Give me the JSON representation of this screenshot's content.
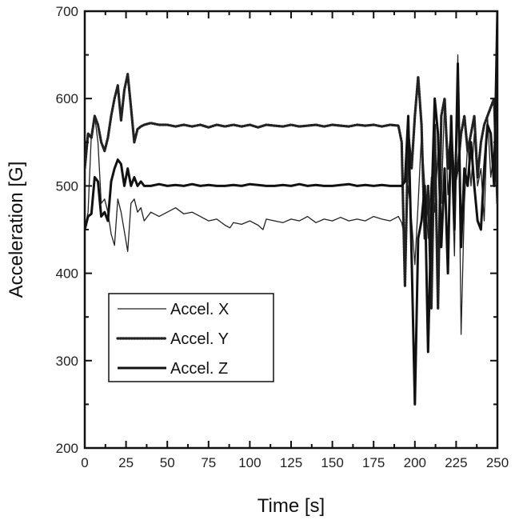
{
  "chart_data": {
    "type": "line",
    "title": "",
    "xlabel": "Time [s]",
    "ylabel": "Acceleration [G]",
    "xlim": [
      0,
      250
    ],
    "ylim": [
      200,
      700
    ],
    "xticks": [
      0,
      25,
      50,
      75,
      100,
      125,
      150,
      175,
      200,
      225,
      250
    ],
    "yticks": [
      200,
      300,
      400,
      500,
      600,
      700
    ],
    "xtick_labels": [
      "0",
      "25",
      "50",
      "75",
      "100",
      "125",
      "150",
      "175",
      "200",
      "225",
      "250"
    ],
    "ytick_labels": [
      "200",
      "300",
      "400",
      "500",
      "600",
      "700"
    ],
    "grid": false,
    "legend_position": "bottom-left",
    "series": [
      {
        "name": "Accel. X",
        "style": "thin-solid",
        "color": "#222222",
        "x": [
          0,
          2,
          4,
          6,
          8,
          10,
          12,
          14,
          16,
          18,
          20,
          22,
          24,
          26,
          28,
          30,
          32,
          34,
          36,
          40,
          45,
          50,
          55,
          60,
          65,
          70,
          75,
          80,
          85,
          88,
          90,
          95,
          100,
          105,
          108,
          110,
          115,
          120,
          125,
          130,
          135,
          140,
          145,
          150,
          155,
          160,
          165,
          170,
          175,
          180,
          185,
          190,
          192,
          194,
          196,
          198,
          200,
          202,
          204,
          206,
          208,
          210,
          212,
          214,
          216,
          218,
          220,
          222,
          224,
          226,
          228,
          230,
          232,
          234,
          236,
          238,
          240,
          242,
          244,
          246,
          248,
          250
        ],
        "y": [
          450,
          470,
          560,
          580,
          550,
          480,
          485,
          470,
          445,
          432,
          485,
          470,
          448,
          425,
          480,
          485,
          470,
          475,
          460,
          470,
          465,
          470,
          475,
          468,
          470,
          465,
          460,
          462,
          455,
          452,
          458,
          456,
          460,
          455,
          450,
          462,
          460,
          458,
          462,
          460,
          465,
          458,
          462,
          460,
          464,
          460,
          462,
          460,
          465,
          462,
          460,
          465,
          458,
          440,
          500,
          460,
          410,
          480,
          560,
          500,
          440,
          510,
          470,
          540,
          480,
          600,
          490,
          540,
          420,
          650,
          330,
          480,
          550,
          500,
          560,
          500,
          520,
          460,
          580,
          510,
          540,
          700
        ]
      },
      {
        "name": "Accel. Y",
        "style": "dotted",
        "color": "#222222",
        "x": [
          0,
          2,
          4,
          6,
          8,
          10,
          12,
          14,
          16,
          18,
          20,
          22,
          24,
          26,
          28,
          30,
          32,
          34,
          36,
          40,
          45,
          50,
          55,
          60,
          65,
          70,
          75,
          80,
          85,
          90,
          95,
          100,
          105,
          110,
          115,
          120,
          125,
          130,
          135,
          140,
          145,
          150,
          155,
          160,
          165,
          170,
          175,
          180,
          185,
          190,
          192,
          194,
          196,
          198,
          200,
          202,
          204,
          206,
          208,
          210,
          212,
          214,
          216,
          218,
          220,
          222,
          224,
          226,
          228,
          230,
          232,
          234,
          236,
          238,
          240,
          242,
          244,
          246,
          248,
          250
        ],
        "y": [
          520,
          560,
          555,
          580,
          570,
          550,
          540,
          555,
          580,
          600,
          615,
          575,
          610,
          628,
          590,
          550,
          565,
          568,
          570,
          572,
          570,
          570,
          568,
          570,
          568,
          570,
          567,
          570,
          568,
          570,
          568,
          570,
          567,
          570,
          569,
          568,
          570,
          568,
          569,
          570,
          568,
          570,
          569,
          568,
          570,
          569,
          570,
          568,
          570,
          569,
          550,
          385,
          560,
          520,
          580,
          625,
          570,
          440,
          500,
          360,
          570,
          360,
          580,
          600,
          520,
          560,
          500,
          520,
          560,
          580,
          540,
          560,
          580,
          510,
          550,
          570,
          580,
          590,
          600,
          480
        ]
      },
      {
        "name": "Accel. Z",
        "style": "thick-solid",
        "color": "#111111",
        "x": [
          0,
          2,
          4,
          6,
          8,
          10,
          12,
          14,
          16,
          18,
          20,
          22,
          24,
          26,
          28,
          30,
          32,
          34,
          36,
          40,
          45,
          50,
          55,
          60,
          65,
          70,
          75,
          80,
          85,
          90,
          95,
          100,
          105,
          110,
          115,
          120,
          125,
          130,
          135,
          140,
          145,
          150,
          155,
          160,
          165,
          170,
          175,
          180,
          185,
          190,
          192,
          194,
          196,
          198,
          200,
          202,
          204,
          206,
          208,
          210,
          212,
          214,
          216,
          218,
          220,
          222,
          224,
          226,
          228,
          230,
          232,
          234,
          236,
          238,
          240,
          242,
          244,
          246,
          248,
          250
        ],
        "y": [
          450,
          465,
          468,
          510,
          505,
          465,
          470,
          460,
          505,
          520,
          530,
          525,
          500,
          520,
          500,
          510,
          500,
          505,
          500,
          500,
          502,
          500,
          501,
          500,
          502,
          500,
          501,
          500,
          500,
          501,
          500,
          502,
          501,
          500,
          500,
          501,
          500,
          502,
          500,
          501,
          500,
          500,
          501,
          502,
          500,
          501,
          500,
          501,
          500,
          500,
          500,
          505,
          580,
          420,
          250,
          440,
          460,
          500,
          310,
          470,
          600,
          560,
          430,
          520,
          400,
          580,
          450,
          640,
          430,
          520,
          500,
          550,
          500,
          460,
          450,
          520,
          570,
          560,
          500,
          700
        ]
      }
    ]
  }
}
